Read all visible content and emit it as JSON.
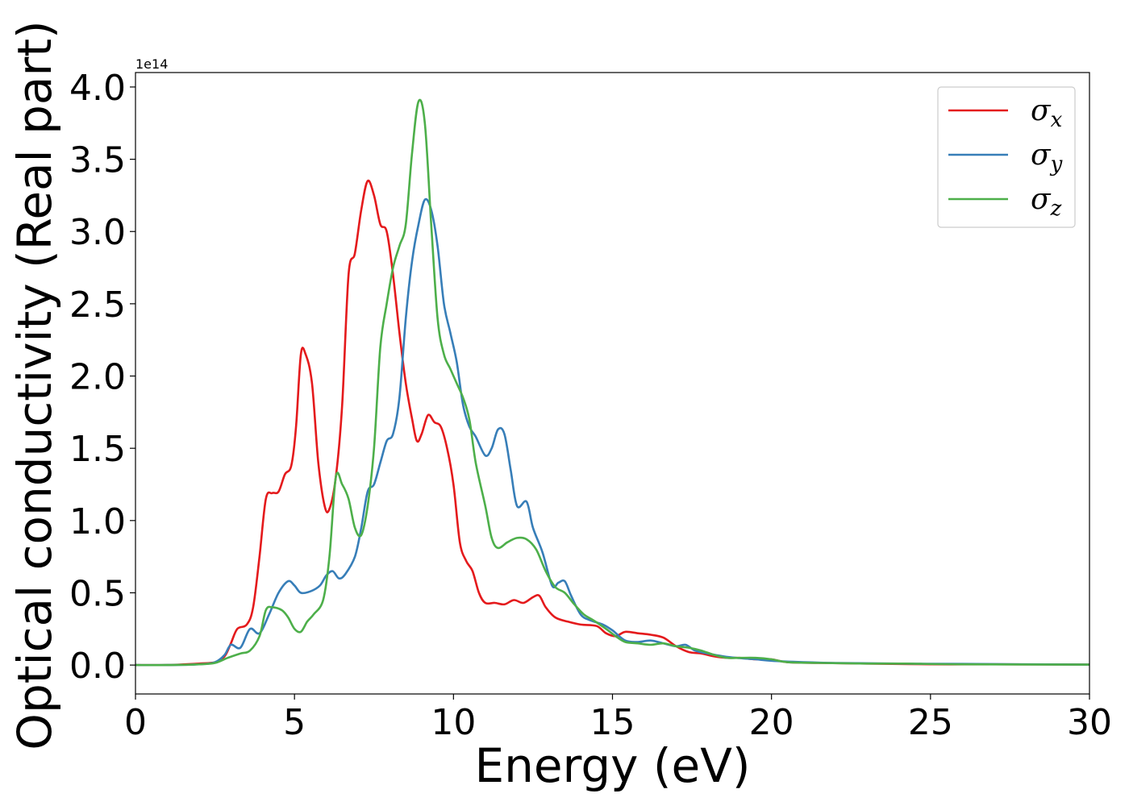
{
  "chart_data": {
    "type": "line",
    "xlabel": "Energy (eV)",
    "ylabel": "Optical conductivity (Real part)",
    "y_offset_label": "1e14",
    "xlim": [
      0,
      30
    ],
    "ylim": [
      -0.2,
      4.1
    ],
    "x_ticks": [
      0,
      5,
      10,
      15,
      20,
      25,
      30
    ],
    "x_tick_labels": [
      "0",
      "5",
      "10",
      "15",
      "20",
      "25",
      "30"
    ],
    "y_ticks": [
      0.0,
      0.5,
      1.0,
      1.5,
      2.0,
      2.5,
      3.0,
      3.5,
      4.0
    ],
    "y_tick_labels": [
      "0.0",
      "0.5",
      "1.0",
      "1.5",
      "2.0",
      "2.5",
      "3.0",
      "3.5",
      "4.0"
    ],
    "grid": false,
    "legend_position": "top-right",
    "series": [
      {
        "name": "σx",
        "legend_symbol": "σ",
        "legend_sub": "x",
        "color": "#e41a1c",
        "points": [
          [
            0,
            0
          ],
          [
            1,
            0
          ],
          [
            2,
            0.01
          ],
          [
            2.5,
            0.02
          ],
          [
            2.8,
            0.06
          ],
          [
            3.0,
            0.15
          ],
          [
            3.2,
            0.25
          ],
          [
            3.5,
            0.28
          ],
          [
            3.7,
            0.4
          ],
          [
            3.9,
            0.75
          ],
          [
            4.1,
            1.15
          ],
          [
            4.3,
            1.19
          ],
          [
            4.5,
            1.2
          ],
          [
            4.7,
            1.32
          ],
          [
            4.9,
            1.38
          ],
          [
            5.05,
            1.65
          ],
          [
            5.2,
            2.15
          ],
          [
            5.35,
            2.15
          ],
          [
            5.55,
            1.95
          ],
          [
            5.75,
            1.4
          ],
          [
            5.95,
            1.1
          ],
          [
            6.1,
            1.08
          ],
          [
            6.3,
            1.3
          ],
          [
            6.5,
            1.8
          ],
          [
            6.7,
            2.7
          ],
          [
            6.9,
            2.85
          ],
          [
            7.1,
            3.15
          ],
          [
            7.3,
            3.35
          ],
          [
            7.5,
            3.25
          ],
          [
            7.7,
            3.05
          ],
          [
            7.9,
            3.0
          ],
          [
            8.1,
            2.7
          ],
          [
            8.3,
            2.3
          ],
          [
            8.5,
            1.95
          ],
          [
            8.7,
            1.7
          ],
          [
            8.85,
            1.55
          ],
          [
            9.0,
            1.6
          ],
          [
            9.2,
            1.73
          ],
          [
            9.4,
            1.68
          ],
          [
            9.6,
            1.65
          ],
          [
            9.8,
            1.5
          ],
          [
            10.0,
            1.25
          ],
          [
            10.2,
            0.85
          ],
          [
            10.4,
            0.72
          ],
          [
            10.6,
            0.65
          ],
          [
            10.8,
            0.5
          ],
          [
            11.0,
            0.43
          ],
          [
            11.3,
            0.43
          ],
          [
            11.6,
            0.42
          ],
          [
            11.9,
            0.45
          ],
          [
            12.2,
            0.43
          ],
          [
            12.5,
            0.47
          ],
          [
            12.7,
            0.48
          ],
          [
            12.9,
            0.4
          ],
          [
            13.2,
            0.33
          ],
          [
            13.6,
            0.3
          ],
          [
            14.0,
            0.28
          ],
          [
            14.5,
            0.27
          ],
          [
            14.8,
            0.22
          ],
          [
            15.1,
            0.2
          ],
          [
            15.4,
            0.23
          ],
          [
            15.8,
            0.22
          ],
          [
            16.2,
            0.21
          ],
          [
            16.6,
            0.19
          ],
          [
            17.0,
            0.13
          ],
          [
            17.4,
            0.09
          ],
          [
            17.8,
            0.08
          ],
          [
            18.2,
            0.06
          ],
          [
            18.6,
            0.05
          ],
          [
            19.0,
            0.05
          ],
          [
            19.5,
            0.04
          ],
          [
            20.0,
            0.04
          ],
          [
            20.5,
            0.02
          ],
          [
            21.5,
            0.015
          ],
          [
            23,
            0.01
          ],
          [
            25,
            0.005
          ],
          [
            27,
            0.005
          ],
          [
            30,
            0.003
          ]
        ]
      },
      {
        "name": "σy",
        "legend_symbol": "σ",
        "legend_sub": "y",
        "color": "#377eb8",
        "points": [
          [
            0,
            0
          ],
          [
            1,
            0
          ],
          [
            2,
            0.005
          ],
          [
            2.5,
            0.02
          ],
          [
            2.8,
            0.07
          ],
          [
            3.0,
            0.14
          ],
          [
            3.3,
            0.12
          ],
          [
            3.6,
            0.25
          ],
          [
            3.9,
            0.22
          ],
          [
            4.2,
            0.35
          ],
          [
            4.5,
            0.5
          ],
          [
            4.8,
            0.58
          ],
          [
            5.0,
            0.55
          ],
          [
            5.2,
            0.5
          ],
          [
            5.5,
            0.51
          ],
          [
            5.8,
            0.55
          ],
          [
            6.0,
            0.62
          ],
          [
            6.2,
            0.65
          ],
          [
            6.4,
            0.6
          ],
          [
            6.6,
            0.63
          ],
          [
            6.9,
            0.75
          ],
          [
            7.1,
            0.95
          ],
          [
            7.3,
            1.2
          ],
          [
            7.5,
            1.25
          ],
          [
            7.7,
            1.4
          ],
          [
            7.9,
            1.55
          ],
          [
            8.1,
            1.6
          ],
          [
            8.3,
            1.85
          ],
          [
            8.5,
            2.4
          ],
          [
            8.7,
            2.8
          ],
          [
            8.9,
            3.05
          ],
          [
            9.1,
            3.22
          ],
          [
            9.3,
            3.15
          ],
          [
            9.5,
            2.9
          ],
          [
            9.7,
            2.5
          ],
          [
            9.9,
            2.3
          ],
          [
            10.1,
            2.1
          ],
          [
            10.3,
            1.8
          ],
          [
            10.5,
            1.65
          ],
          [
            10.7,
            1.58
          ],
          [
            11.0,
            1.45
          ],
          [
            11.2,
            1.5
          ],
          [
            11.4,
            1.63
          ],
          [
            11.6,
            1.6
          ],
          [
            11.8,
            1.35
          ],
          [
            12.0,
            1.1
          ],
          [
            12.3,
            1.13
          ],
          [
            12.5,
            0.95
          ],
          [
            12.8,
            0.78
          ],
          [
            13.1,
            0.55
          ],
          [
            13.3,
            0.57
          ],
          [
            13.5,
            0.58
          ],
          [
            13.7,
            0.48
          ],
          [
            14.0,
            0.35
          ],
          [
            14.3,
            0.31
          ],
          [
            14.7,
            0.28
          ],
          [
            15.0,
            0.24
          ],
          [
            15.4,
            0.17
          ],
          [
            15.8,
            0.16
          ],
          [
            16.2,
            0.17
          ],
          [
            16.6,
            0.15
          ],
          [
            17.0,
            0.13
          ],
          [
            17.3,
            0.14
          ],
          [
            17.6,
            0.1
          ],
          [
            18.0,
            0.08
          ],
          [
            18.5,
            0.06
          ],
          [
            18.9,
            0.05
          ],
          [
            19.5,
            0.04
          ],
          [
            20.0,
            0.03
          ],
          [
            21.0,
            0.02
          ],
          [
            22,
            0.015
          ],
          [
            24,
            0.01
          ],
          [
            26,
            0.008
          ],
          [
            30,
            0.003
          ]
        ]
      },
      {
        "name": "σz",
        "legend_symbol": "σ",
        "legend_sub": "z",
        "color": "#4daf4a",
        "points": [
          [
            0,
            0
          ],
          [
            1,
            0
          ],
          [
            2,
            0.005
          ],
          [
            2.5,
            0.015
          ],
          [
            2.9,
            0.05
          ],
          [
            3.3,
            0.08
          ],
          [
            3.6,
            0.1
          ],
          [
            3.9,
            0.2
          ],
          [
            4.1,
            0.38
          ],
          [
            4.3,
            0.4
          ],
          [
            4.6,
            0.38
          ],
          [
            4.8,
            0.33
          ],
          [
            5.0,
            0.25
          ],
          [
            5.2,
            0.23
          ],
          [
            5.4,
            0.3
          ],
          [
            5.6,
            0.35
          ],
          [
            5.9,
            0.45
          ],
          [
            6.1,
            0.75
          ],
          [
            6.3,
            1.3
          ],
          [
            6.5,
            1.25
          ],
          [
            6.7,
            1.15
          ],
          [
            6.9,
            0.95
          ],
          [
            7.1,
            0.9
          ],
          [
            7.3,
            1.1
          ],
          [
            7.5,
            1.5
          ],
          [
            7.7,
            2.2
          ],
          [
            7.9,
            2.5
          ],
          [
            8.1,
            2.75
          ],
          [
            8.3,
            2.9
          ],
          [
            8.5,
            3.05
          ],
          [
            8.7,
            3.55
          ],
          [
            8.9,
            3.9
          ],
          [
            9.1,
            3.75
          ],
          [
            9.3,
            3.05
          ],
          [
            9.5,
            2.4
          ],
          [
            9.7,
            2.15
          ],
          [
            9.9,
            2.05
          ],
          [
            10.1,
            1.95
          ],
          [
            10.3,
            1.85
          ],
          [
            10.5,
            1.7
          ],
          [
            10.7,
            1.4
          ],
          [
            11.0,
            1.1
          ],
          [
            11.2,
            0.88
          ],
          [
            11.4,
            0.81
          ],
          [
            11.7,
            0.85
          ],
          [
            12.0,
            0.88
          ],
          [
            12.3,
            0.87
          ],
          [
            12.6,
            0.8
          ],
          [
            12.9,
            0.65
          ],
          [
            13.2,
            0.54
          ],
          [
            13.5,
            0.5
          ],
          [
            13.8,
            0.42
          ],
          [
            14.1,
            0.35
          ],
          [
            14.4,
            0.31
          ],
          [
            14.8,
            0.25
          ],
          [
            15.1,
            0.2
          ],
          [
            15.4,
            0.16
          ],
          [
            15.8,
            0.15
          ],
          [
            16.2,
            0.14
          ],
          [
            16.6,
            0.15
          ],
          [
            17.0,
            0.13
          ],
          [
            17.4,
            0.12
          ],
          [
            17.8,
            0.1
          ],
          [
            18.2,
            0.07
          ],
          [
            18.6,
            0.05
          ],
          [
            19.0,
            0.05
          ],
          [
            19.5,
            0.05
          ],
          [
            20.0,
            0.04
          ],
          [
            20.5,
            0.02
          ],
          [
            21.5,
            0.015
          ],
          [
            23,
            0.01
          ],
          [
            24.2,
            0.01
          ],
          [
            26,
            0.005
          ],
          [
            30,
            0.003
          ]
        ]
      }
    ]
  }
}
